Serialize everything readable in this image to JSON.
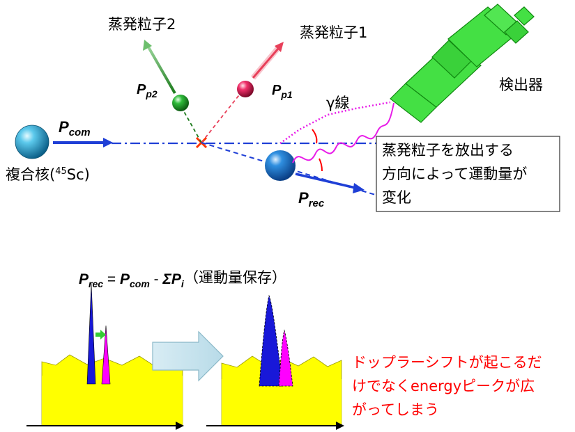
{
  "top": {
    "evap2": "蒸発粒子2",
    "evap1": "蒸発粒子1",
    "detector": "検出器",
    "gamma": "γ線",
    "p_p2": {
      "main": "P",
      "sub": "p2"
    },
    "p_p1": {
      "main": "P",
      "sub": "p1"
    },
    "p_com": {
      "main": "P",
      "sub": "com"
    },
    "p_rec": {
      "main": "P",
      "sub": "rec"
    },
    "compound_prefix": "複合核(",
    "compound_sup": "45",
    "compound_suffix": "Sc)",
    "note_lines": [
      "蒸発粒子を放出する",
      "方向によって運動量が",
      "変化"
    ]
  },
  "bottom": {
    "eq": {
      "p1": "P",
      "s1": "rec",
      "eq": " = ",
      "p2": "P",
      "s2": "com",
      "minus": " - ",
      "sigma": "ΣP",
      "s3": "i"
    },
    "conservation": "（運動量保存）",
    "note_lines": [
      "ドップラーシフトが起こるだ",
      "けでなくenergyピークが広",
      "がってしまう"
    ]
  },
  "colors": {
    "blue_arrow": "#1f3fd6",
    "green_arrow": "#1a7a1a",
    "red_arrow": "#e8405a",
    "detector": "#33dd33",
    "gamma": "#e81ce8",
    "spectrum_fill": "#ffff00",
    "peak_blue": "#1818d8",
    "peak_magenta": "#ff00ff",
    "note_red": "#ff0000"
  }
}
